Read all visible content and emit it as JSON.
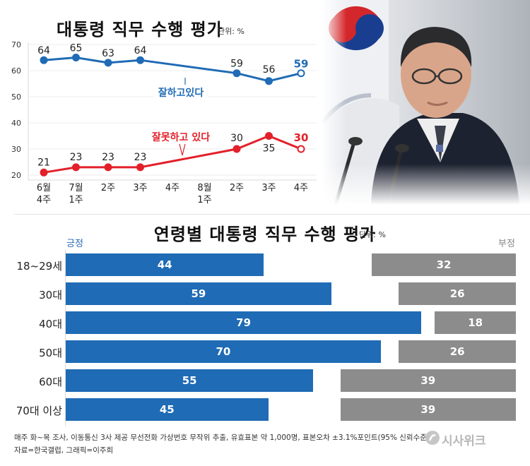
{
  "colors": {
    "positive": "#1f6bb5",
    "negative": "#e3202a",
    "neg_bar": "#8c8c8c"
  },
  "line_title": "대통령 직무 수행 평가",
  "line_unit": "단위: %",
  "bar_title": "연령별 대통령 직무 수행 평가",
  "bar_unit": "단위: %",
  "positive_label": "긍정",
  "negative_label": "부정",
  "footnote_1": "매주 화~목 조사, 이동통신 3사 제공 무선전화 가상번호 무작위 추출, 유효표본 약 1,000명, 표본오차 ±3.1%포인트(95% 신뢰수준)",
  "footnote_2": "자료=한국갤럽, 그래픽=이주희",
  "brand": "시사위크",
  "chart_data": [
    {
      "type": "line",
      "title": "대통령 직무 수행 평가",
      "ylim": [
        20,
        70
      ],
      "yticks": [
        "20",
        "30",
        "40",
        "50",
        "60",
        "70"
      ],
      "x": [
        "6월\n4주",
        "7월\n1주",
        "2주",
        "3주",
        "4주",
        "8월\n1주",
        "2주",
        "3주",
        "4주"
      ],
      "series": [
        {
          "name": "잘하고있다",
          "values": [
            64,
            65,
            63,
            64,
            null,
            null,
            59,
            56,
            59
          ]
        },
        {
          "name": "잘못하고 있다",
          "values": [
            21,
            23,
            23,
            23,
            null,
            null,
            30,
            35,
            30
          ]
        }
      ]
    },
    {
      "type": "bar",
      "title": "연령별 대통령 직무 수행 평가",
      "categories": [
        "18~29세",
        "30대",
        "40대",
        "50대",
        "60대",
        "70대 이상"
      ],
      "series": [
        {
          "name": "긍정",
          "values": [
            44,
            59,
            79,
            70,
            55,
            45
          ]
        },
        {
          "name": "부정",
          "values": [
            32,
            26,
            18,
            26,
            39,
            39
          ]
        }
      ]
    }
  ]
}
